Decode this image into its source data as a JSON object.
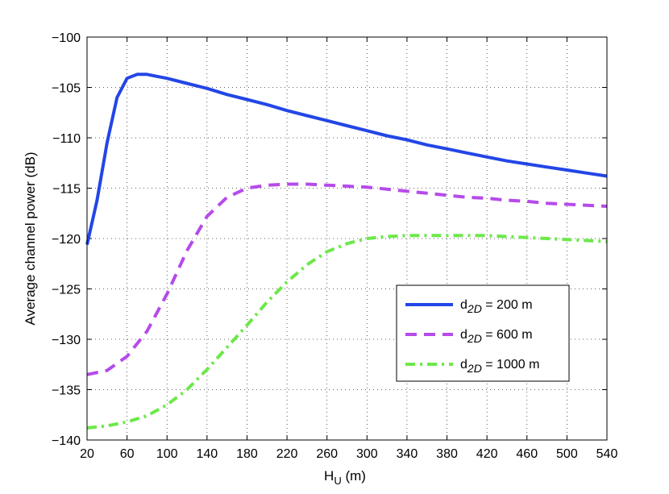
{
  "chart_data": {
    "type": "line",
    "title": "",
    "xlabel": {
      "main": "H",
      "sub": "U",
      "unit": " (m)"
    },
    "ylabel": "Average channel power (dB)",
    "xlim": [
      20,
      540
    ],
    "ylim": [
      -140,
      -100
    ],
    "xticks": [
      20,
      60,
      100,
      140,
      180,
      220,
      260,
      300,
      340,
      380,
      420,
      460,
      500,
      540
    ],
    "yticks": [
      -100,
      -105,
      -110,
      -115,
      -120,
      -125,
      -130,
      -135,
      -140
    ],
    "grid": true,
    "legend_position": "right",
    "series": [
      {
        "name": {
          "pre": "d",
          "sub": "2D",
          "post": " = 200 m"
        },
        "color": "#2346e6",
        "style": "solid",
        "x": [
          20,
          30,
          40,
          50,
          60,
          70,
          80,
          90,
          100,
          120,
          140,
          160,
          180,
          200,
          220,
          240,
          260,
          280,
          300,
          320,
          340,
          360,
          380,
          400,
          420,
          440,
          460,
          480,
          500,
          520,
          540
        ],
        "y": [
          -120.6,
          -116.2,
          -110.5,
          -106.0,
          -104.1,
          -103.7,
          -103.7,
          -103.9,
          -104.1,
          -104.6,
          -105.1,
          -105.7,
          -106.2,
          -106.7,
          -107.3,
          -107.8,
          -108.3,
          -108.8,
          -109.3,
          -109.8,
          -110.2,
          -110.7,
          -111.1,
          -111.5,
          -111.9,
          -112.3,
          -112.6,
          -112.9,
          -113.2,
          -113.5,
          -113.8
        ]
      },
      {
        "name": {
          "pre": "d",
          "sub": "2D",
          "post": " = 600 m"
        },
        "color": "#b54bea",
        "style": "dashed",
        "x": [
          20,
          40,
          60,
          80,
          100,
          120,
          140,
          160,
          180,
          200,
          220,
          240,
          260,
          280,
          300,
          320,
          340,
          360,
          380,
          400,
          420,
          440,
          460,
          480,
          500,
          520,
          540
        ],
        "y": [
          -133.5,
          -133.1,
          -131.7,
          -129.2,
          -125.5,
          -121.2,
          -117.8,
          -115.9,
          -115.0,
          -114.7,
          -114.6,
          -114.6,
          -114.7,
          -114.8,
          -114.9,
          -115.1,
          -115.3,
          -115.5,
          -115.7,
          -115.9,
          -116.0,
          -116.2,
          -116.3,
          -116.5,
          -116.6,
          -116.7,
          -116.8
        ]
      },
      {
        "name": {
          "pre": "d",
          "sub": "2D",
          "post": " = 1000 m"
        },
        "color": "#6de84a",
        "style": "dashdot",
        "x": [
          20,
          40,
          60,
          80,
          100,
          120,
          140,
          160,
          180,
          200,
          220,
          240,
          260,
          280,
          300,
          320,
          340,
          360,
          380,
          400,
          420,
          440,
          460,
          480,
          500,
          520,
          540
        ],
        "y": [
          -138.8,
          -138.6,
          -138.2,
          -137.6,
          -136.5,
          -135.0,
          -133.0,
          -130.8,
          -128.6,
          -126.3,
          -124.3,
          -122.6,
          -121.3,
          -120.5,
          -120.0,
          -119.8,
          -119.7,
          -119.7,
          -119.7,
          -119.7,
          -119.7,
          -119.8,
          -119.9,
          -120.0,
          -120.1,
          -120.2,
          -120.3
        ]
      }
    ]
  }
}
